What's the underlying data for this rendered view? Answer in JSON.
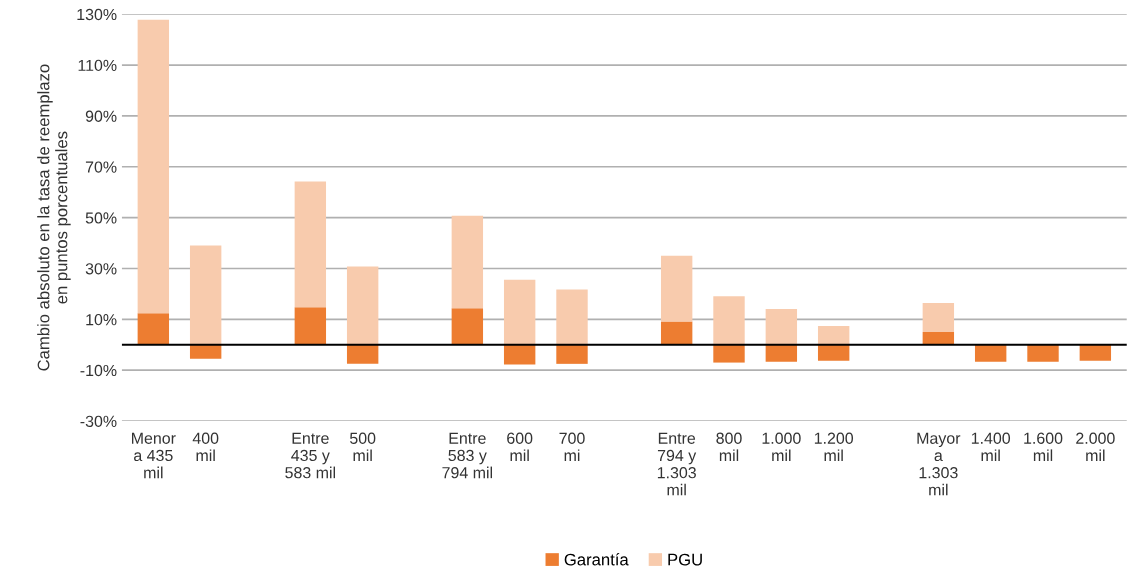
{
  "chart_data": {
    "type": "bar",
    "stacked": true,
    "ylabel": "Cambio absoluto en la tasa de reemplazo\nen puntos porcentuales",
    "categories": [
      "Menor\na 435\nmil",
      "400\nmil",
      null,
      "Entre\n435 y\n583 mil",
      "500\nmil",
      null,
      "Entre\n583 y\n794 mil",
      "600\nmil",
      "700\nmi",
      null,
      "Entre\n794 y\n1.303\nmil",
      "800\nmil",
      "1.000\nmil",
      "1.200\nmil",
      null,
      "Mayor\na\n1.303\nmil",
      "1.400\nmil",
      "1.600\nmil",
      "2.000\nmil"
    ],
    "series": [
      {
        "name": "Garantía",
        "color": "#ed7d31",
        "values": [
          12.4,
          -5.5,
          null,
          14.8,
          -7.5,
          null,
          14.4,
          -7.8,
          -7.5,
          null,
          9.2,
          -7.0,
          -6.7,
          -6.3,
          null,
          5.0,
          -6.7,
          -6.7,
          -6.3
        ]
      },
      {
        "name": "PGU",
        "color": "#f8cbad",
        "values": [
          115.4,
          39.0,
          null,
          49.4,
          30.8,
          null,
          36.3,
          25.6,
          21.7,
          null,
          25.8,
          19.1,
          14.1,
          7.4,
          null,
          11.4,
          null,
          null,
          null
        ]
      }
    ],
    "ylim": [
      -30,
      130
    ],
    "yticks": [
      {
        "value": -30,
        "label": "-30%"
      },
      {
        "value": -10,
        "label": "-10%"
      },
      {
        "value": 10,
        "label": "10%"
      },
      {
        "value": 30,
        "label": "30%"
      },
      {
        "value": 50,
        "label": "50%"
      },
      {
        "value": 70,
        "label": "70%"
      },
      {
        "value": 90,
        "label": "90%"
      },
      {
        "value": 110,
        "label": "110%"
      },
      {
        "value": 130,
        "label": "130%"
      }
    ],
    "grid": "y",
    "legend": "bottom"
  }
}
